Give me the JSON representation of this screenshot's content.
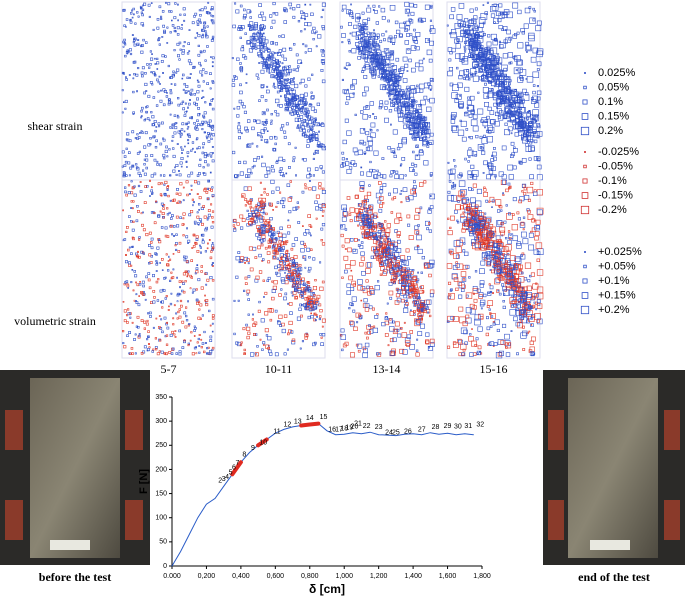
{
  "labels": {
    "shear": "shear strain",
    "volumetric": "volumetric strain",
    "columns": [
      "5-7",
      "10-11",
      "13-14",
      "15-16"
    ],
    "before": "before the test",
    "after": "end of the test"
  },
  "legend": {
    "shear": [
      "0.025%",
      "0.05%",
      "0.1%",
      "0.15%",
      "0.2%"
    ],
    "negative": [
      "-0.025%",
      "-0.05%",
      "-0.1%",
      "-0.15%",
      "-0.2%"
    ],
    "positive": [
      "+0.025%",
      "+0.05%",
      "+0.1%",
      "+0.15%",
      "+0.2%"
    ]
  },
  "chart_data": {
    "type": "line",
    "xlabel": "δ [cm]",
    "ylabel": "F [N]",
    "x": [
      0,
      0.05,
      0.1,
      0.15,
      0.2,
      0.25,
      0.3,
      0.35,
      0.4,
      0.45,
      0.5,
      0.55,
      0.6,
      0.65,
      0.7,
      0.75,
      0.8,
      0.85,
      0.9,
      0.95,
      1.0,
      1.05,
      1.1,
      1.15,
      1.2,
      1.25,
      1.3,
      1.35,
      1.4,
      1.45,
      1.5,
      1.55,
      1.6,
      1.65,
      1.7,
      1.75
    ],
    "series": [
      {
        "color": "#2a5cc8",
        "values": [
          0,
          30,
          65,
          100,
          128,
          140,
          165,
          190,
          215,
          235,
          250,
          262,
          275,
          283,
          288,
          291,
          293,
          295,
          280,
          272,
          273,
          276,
          274,
          277,
          272,
          271,
          270,
          273,
          274,
          272,
          276,
          273,
          275,
          272,
          274,
          272
        ]
      },
      {
        "color": "#e02a20",
        "values": [
          null,
          null,
          null,
          null,
          null,
          null,
          null,
          190,
          215,
          null,
          250,
          262,
          null,
          null,
          null,
          291,
          293,
          295,
          null,
          null,
          null,
          null,
          null,
          null,
          null,
          null,
          null,
          null,
          null,
          null,
          null,
          null,
          null,
          null,
          null,
          null
        ]
      }
    ],
    "annotations": [
      {
        "text": "2",
        "x": 0.28,
        "y": 168
      },
      {
        "text": "3",
        "x": 0.3,
        "y": 172
      },
      {
        "text": "4",
        "x": 0.32,
        "y": 176
      },
      {
        "text": "5",
        "x": 0.34,
        "y": 185
      },
      {
        "text": "6",
        "x": 0.36,
        "y": 195
      },
      {
        "text": "7",
        "x": 0.38,
        "y": 205
      },
      {
        "text": "8",
        "x": 0.42,
        "y": 222
      },
      {
        "text": "9",
        "x": 0.47,
        "y": 236
      },
      {
        "text": "10",
        "x": 0.53,
        "y": 247
      },
      {
        "text": "11",
        "x": 0.61,
        "y": 270
      },
      {
        "text": "12",
        "x": 0.67,
        "y": 284
      },
      {
        "text": "13",
        "x": 0.73,
        "y": 291
      },
      {
        "text": "14",
        "x": 0.8,
        "y": 298
      },
      {
        "text": "15",
        "x": 0.88,
        "y": 300
      },
      {
        "text": "16",
        "x": 0.93,
        "y": 274
      },
      {
        "text": "17",
        "x": 0.97,
        "y": 274
      },
      {
        "text": "18",
        "x": 1.0,
        "y": 276
      },
      {
        "text": "19",
        "x": 1.03,
        "y": 278
      },
      {
        "text": "20",
        "x": 1.06,
        "y": 280
      },
      {
        "text": "21",
        "x": 1.08,
        "y": 287
      },
      {
        "text": "22",
        "x": 1.13,
        "y": 281
      },
      {
        "text": "23",
        "x": 1.2,
        "y": 279
      },
      {
        "text": "24",
        "x": 1.26,
        "y": 268
      },
      {
        "text": "25",
        "x": 1.3,
        "y": 268
      },
      {
        "text": "26",
        "x": 1.37,
        "y": 270
      },
      {
        "text": "27",
        "x": 1.45,
        "y": 274
      },
      {
        "text": "28",
        "x": 1.53,
        "y": 279
      },
      {
        "text": "29",
        "x": 1.6,
        "y": 281
      },
      {
        "text": "30",
        "x": 1.66,
        "y": 280
      },
      {
        "text": "31",
        "x": 1.72,
        "y": 281
      },
      {
        "text": "32",
        "x": 1.79,
        "y": 284
      }
    ],
    "xlim": [
      0,
      1.8
    ],
    "ylim": [
      0,
      350
    ],
    "xticks": [
      {
        "value": 0,
        "label": "0.000"
      },
      {
        "value": 0.2,
        "label": "0,200"
      },
      {
        "value": 0.4,
        "label": "0,400"
      },
      {
        "value": 0.6,
        "label": "0,600"
      },
      {
        "value": 0.8,
        "label": "0,800"
      },
      {
        "value": 1.0,
        "label": "1,000"
      },
      {
        "value": 1.2,
        "label": "1,200"
      },
      {
        "value": 1.4,
        "label": "1,400"
      },
      {
        "value": 1.6,
        "label": "1,600"
      },
      {
        "value": 1.8,
        "label": "1,800"
      }
    ],
    "yticks": [
      0,
      50,
      100,
      150,
      200,
      250,
      300,
      350
    ]
  }
}
